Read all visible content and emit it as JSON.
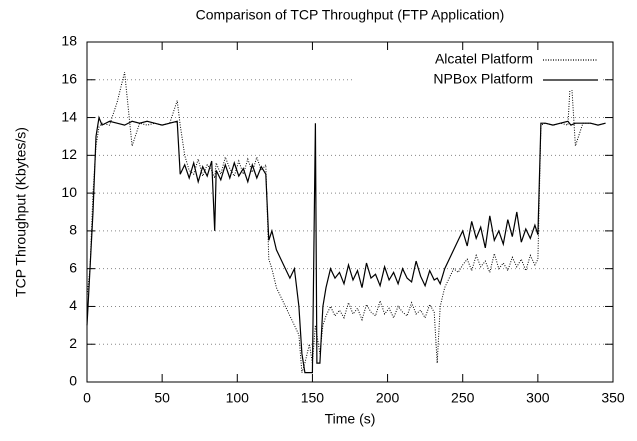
{
  "chart_data": {
    "type": "line",
    "title": "Comparison of TCP Throughput (FTP Application)",
    "x_label": "Time (s)",
    "y_label": "TCP Throughput (Kbytes/s)",
    "xlim": [
      0,
      350
    ],
    "ylim": [
      0,
      18
    ],
    "xticks": [
      0,
      50,
      100,
      150,
      200,
      250,
      300,
      350
    ],
    "yticks": [
      0,
      2,
      4,
      6,
      8,
      10,
      12,
      14,
      16,
      18
    ],
    "grid": true,
    "legend": "top-right",
    "x": [
      0,
      2,
      4,
      6,
      8,
      10,
      15,
      20,
      25,
      30,
      35,
      40,
      45,
      50,
      55,
      60,
      62,
      65,
      68,
      71,
      74,
      77,
      80,
      83,
      85,
      86,
      89,
      92,
      95,
      98,
      101,
      104,
      107,
      110,
      113,
      116,
      119,
      121,
      123,
      126,
      129,
      132,
      135,
      138,
      141,
      143,
      145,
      148,
      150,
      152,
      153,
      155,
      157,
      159,
      162,
      165,
      168,
      171,
      174,
      177,
      180,
      183,
      186,
      189,
      192,
      195,
      198,
      201,
      204,
      207,
      210,
      213,
      216,
      219,
      222,
      225,
      228,
      231,
      233,
      235,
      238,
      241,
      244,
      247,
      250,
      253,
      256,
      259,
      262,
      265,
      268,
      271,
      274,
      277,
      280,
      283,
      286,
      289,
      292,
      295,
      298,
      300,
      302,
      305,
      310,
      315,
      320,
      322,
      325,
      330,
      335,
      340,
      345
    ],
    "series": [
      {
        "name": "Alcatel Platform",
        "color": "#000000",
        "line_style": "dotted",
        "values": [
          4.5,
          6,
          10,
          12.5,
          13.5,
          13.7,
          13.6,
          14.8,
          16.4,
          12.5,
          13.7,
          13.6,
          13.7,
          13.6,
          13.7,
          14.9,
          13.6,
          12,
          11.2,
          11,
          11.8,
          10.9,
          11.5,
          11.2,
          10.8,
          11.6,
          11,
          11.9,
          11.3,
          10.9,
          11.7,
          11,
          11.8,
          11.1,
          11.9,
          11.2,
          11.5,
          6.5,
          6,
          5,
          4.5,
          4,
          3.5,
          3,
          2.5,
          0.5,
          1,
          2,
          1,
          3,
          2.5,
          1.5,
          3,
          3.5,
          4,
          3.5,
          3.8,
          3.4,
          4.2,
          3.6,
          3.9,
          3.3,
          4.1,
          3.7,
          3.5,
          4.3,
          3.6,
          3.9,
          3.4,
          4,
          3.7,
          3.5,
          4.2,
          3.6,
          3.8,
          3.4,
          4.1,
          3.7,
          1,
          4,
          5,
          5.5,
          6,
          5.8,
          6.2,
          6.5,
          5.9,
          6.7,
          6.1,
          6.4,
          5.8,
          6.8,
          6,
          6.3,
          5.9,
          6.6,
          6.1,
          6.5,
          5.9,
          6.7,
          6.2,
          6.5,
          13.6,
          13.7,
          13.6,
          13.7,
          13.6,
          16.4,
          12.5,
          13.7,
          13.7,
          13.6,
          13.7
        ]
      },
      {
        "name": "NPBox Platform",
        "color": "#000000",
        "line_style": "solid",
        "values": [
          3,
          6,
          9,
          13,
          14,
          13.6,
          13.8,
          13.7,
          13.6,
          13.8,
          13.7,
          13.8,
          13.7,
          13.6,
          13.7,
          13.8,
          11,
          11.5,
          10.8,
          11.6,
          10.6,
          11.4,
          10.9,
          11.7,
          8,
          11.2,
          10.7,
          11.5,
          10.8,
          11.6,
          10.9,
          11.3,
          10.6,
          11.5,
          10.8,
          11.4,
          11,
          7.5,
          8,
          7,
          6.5,
          6,
          5.5,
          6,
          4,
          1.5,
          0.5,
          0.5,
          0.5,
          13.7,
          1,
          1,
          4,
          5,
          6,
          5.5,
          5.8,
          5.2,
          6.2,
          5.4,
          5.9,
          5,
          6.3,
          5.5,
          5.7,
          5.1,
          6.1,
          5.4,
          5.8,
          5.2,
          6,
          5.5,
          5.3,
          6.4,
          5.6,
          5.1,
          5.9,
          5.4,
          5.5,
          5.2,
          6,
          6.5,
          7,
          7.5,
          8,
          7.2,
          8.5,
          7.6,
          8.2,
          7.1,
          8.8,
          7.5,
          8,
          7.3,
          8.6,
          7.7,
          9,
          7.4,
          8.1,
          7.6,
          8.3,
          7.8,
          13.7,
          13.7,
          13.6,
          13.7,
          13.8,
          13.6,
          13.7,
          13.7,
          13.7,
          13.6,
          13.7
        ]
      }
    ]
  }
}
